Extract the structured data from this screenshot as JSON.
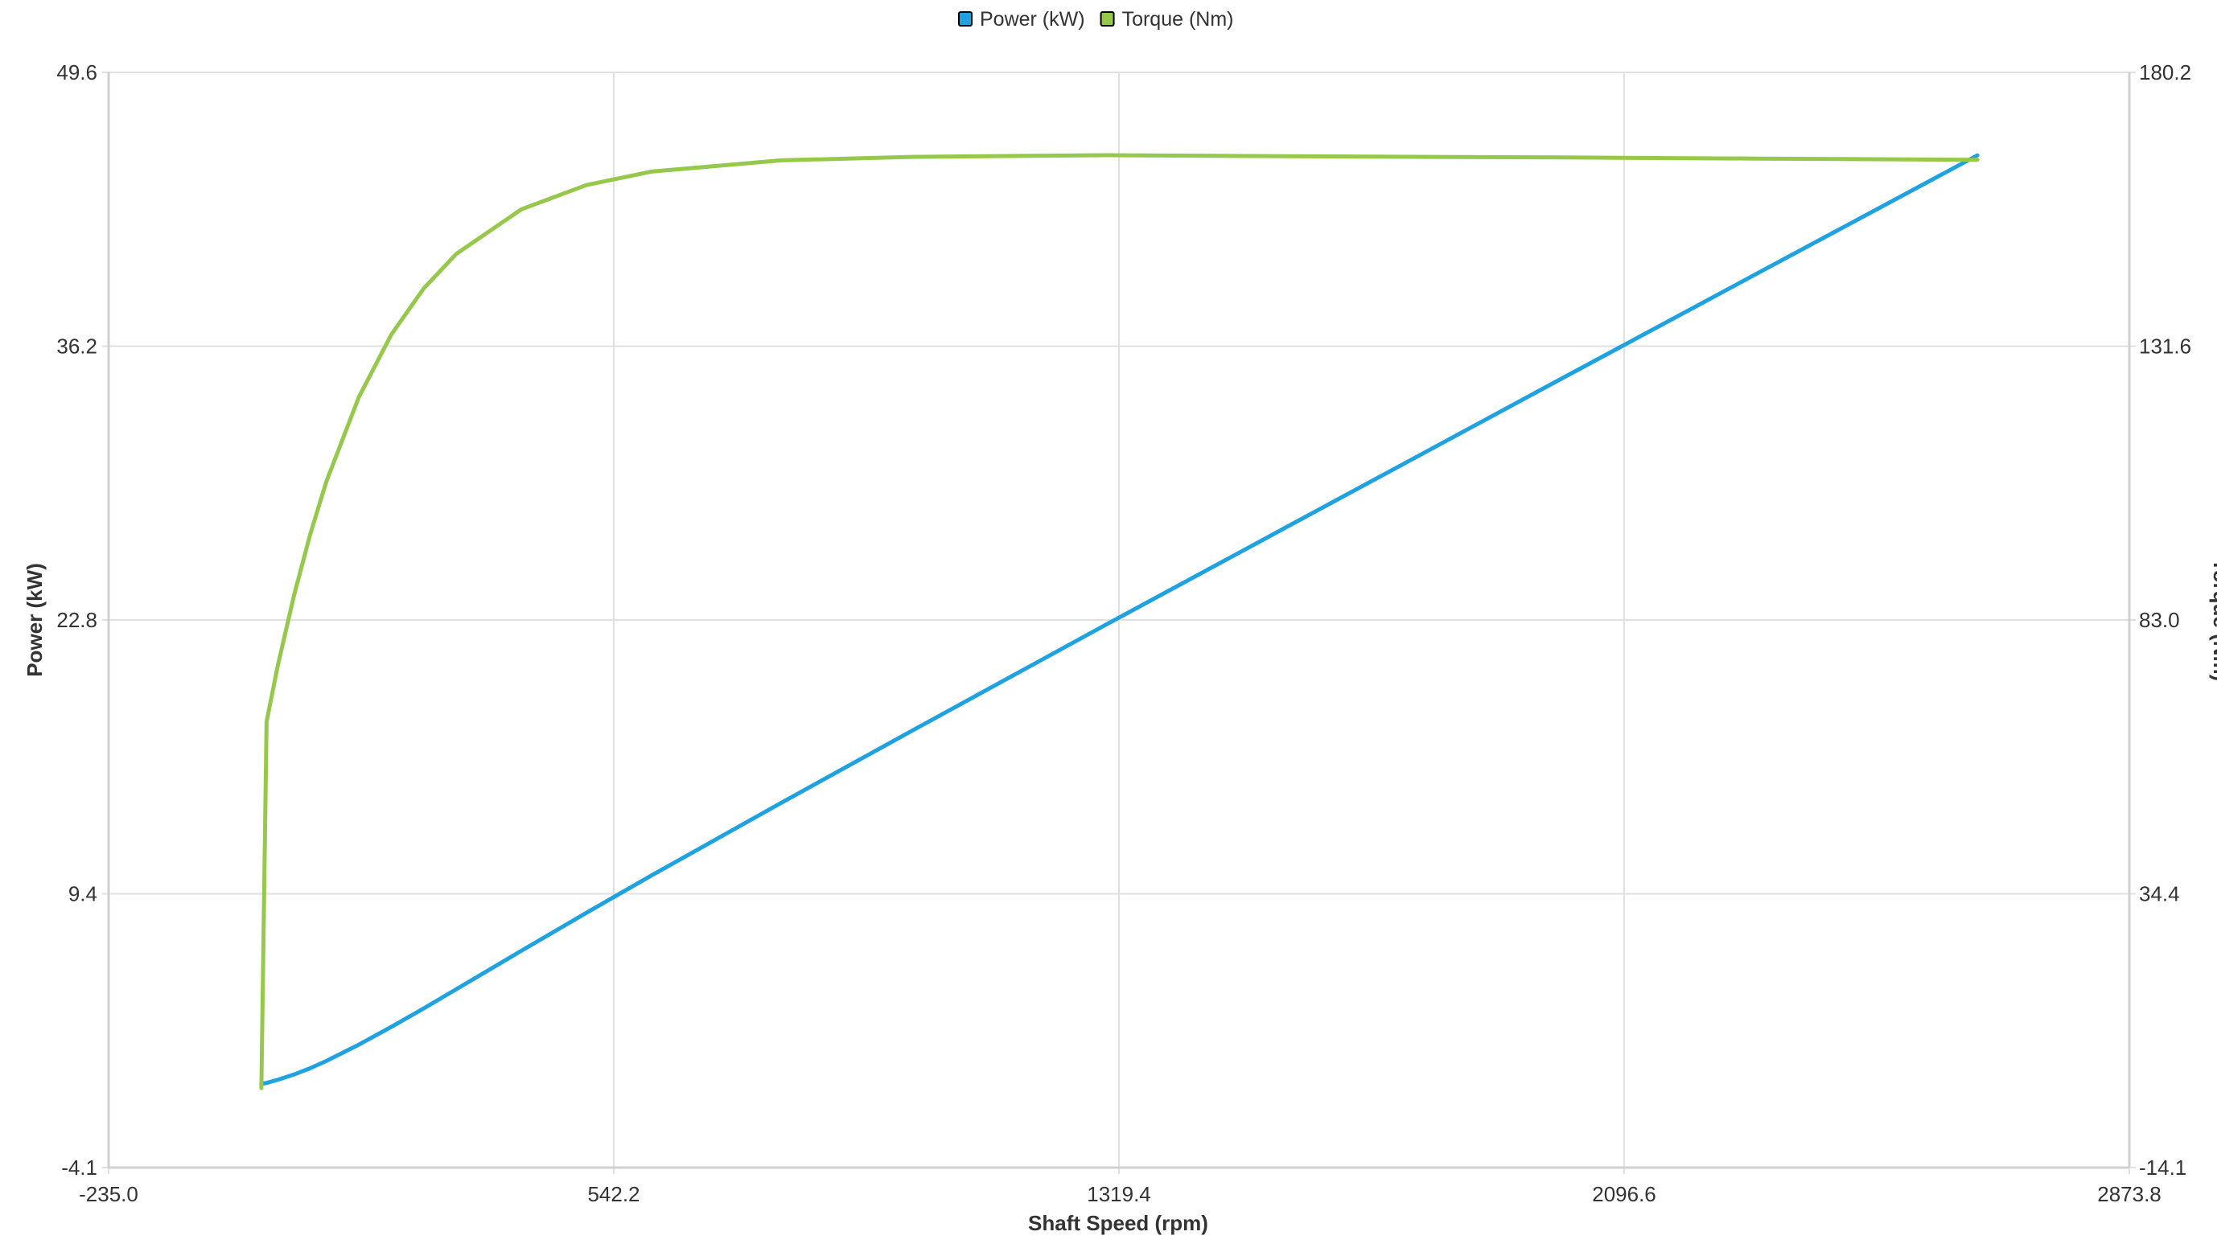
{
  "chart_data": {
    "type": "line",
    "title": "",
    "xlabel": "Shaft Speed (rpm)",
    "ylabel": "Power (kW)",
    "y2label": "Torque (Nm)",
    "xlim": [
      -235.0,
      2873.8
    ],
    "ylim": [
      -4.1,
      49.6
    ],
    "y2lim": [
      -14.1,
      180.2
    ],
    "xticks": [
      "-235.0",
      "542.2",
      "1319.4",
      "2096.6",
      "2873.8"
    ],
    "yticks": [
      "-4.1",
      "9.4",
      "22.8",
      "36.2",
      "49.6"
    ],
    "y2ticks": [
      "-14.1",
      "34.4",
      "83.0",
      "131.6",
      "180.2"
    ],
    "grid": true,
    "legend_position": "top-center",
    "x": [
      0,
      8,
      25,
      50,
      75,
      100,
      150,
      200,
      250,
      300,
      400,
      500,
      600,
      800,
      1000,
      1300,
      1600,
      2000,
      2300,
      2640
    ],
    "series": [
      {
        "name": "Power (kW)",
        "axis": "left",
        "color": "#1fa2e0",
        "values": [
          0,
          0.05,
          0.2,
          0.46,
          0.77,
          1.13,
          1.93,
          2.8,
          3.71,
          4.65,
          6.53,
          8.39,
          10.22,
          13.79,
          17.3,
          22.53,
          27.7,
          34.58,
          39.72,
          45.53
        ]
      },
      {
        "name": "Torque (Nm)",
        "axis": "right",
        "color": "#96c84c",
        "values": [
          0,
          65.0,
          74.8,
          87.3,
          98.2,
          107.6,
          122.6,
          133.7,
          141.9,
          148.0,
          155.9,
          160.2,
          162.6,
          164.6,
          165.2,
          165.5,
          165.3,
          165.1,
          164.9,
          164.7
        ]
      }
    ]
  }
}
